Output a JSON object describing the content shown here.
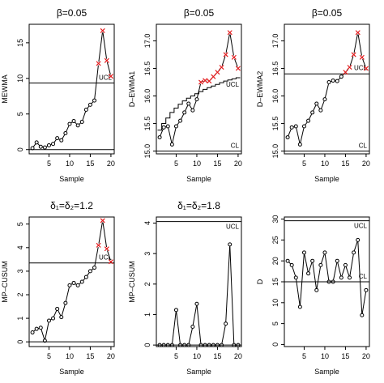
{
  "chart_data": [
    {
      "type": "line",
      "title": "β=0.05",
      "xlabel": "Sample",
      "ylabel": "MEWMA",
      "xlim": [
        0.2,
        20.8
      ],
      "ylim": [
        -0.6,
        17.6
      ],
      "xticks": [
        5,
        10,
        15,
        20
      ],
      "xtick_labels": [
        "5",
        "10",
        "15",
        "20"
      ],
      "yticks": [
        0,
        5,
        10,
        15
      ],
      "ytick_labels": [
        "0",
        "5",
        "10",
        "15"
      ],
      "series": [
        {
          "x": [
            1,
            2,
            3,
            4,
            5,
            6,
            7,
            8,
            9,
            10,
            11,
            12,
            13,
            14,
            15,
            16,
            17,
            18,
            19,
            20
          ],
          "values": [
            0.2,
            1.0,
            0.4,
            0.3,
            0.6,
            0.8,
            1.6,
            1.3,
            2.3,
            3.6,
            4.0,
            3.4,
            3.9,
            5.6,
            6.3,
            6.9,
            12.1,
            16.7,
            12.5,
            10.3
          ],
          "out_of_control": [
            17,
            18,
            19,
            20
          ]
        }
      ],
      "hlines": [
        {
          "y": 0,
          "label": ""
        },
        {
          "y": 9.35,
          "label": "UCL"
        }
      ],
      "grid": false
    },
    {
      "type": "line",
      "title": "β=0.05",
      "xlabel": "Sample",
      "ylabel": "D–EWMA1",
      "xlim": [
        0.2,
        20.8
      ],
      "ylim": [
        14.95,
        17.3
      ],
      "xticks": [
        5,
        10,
        15,
        20
      ],
      "xtick_labels": [
        "5",
        "10",
        "15",
        "20"
      ],
      "yticks": [
        15.0,
        15.5,
        16.0,
        16.5,
        17.0
      ],
      "ytick_labels": [
        "15.0",
        "15.5",
        "16.0",
        "16.5",
        "17.0"
      ],
      "series": [
        {
          "x": [
            1,
            2,
            3,
            4,
            5,
            6,
            7,
            8,
            9,
            10,
            11,
            12,
            13,
            14,
            15,
            16,
            17,
            18,
            19,
            20
          ],
          "values": [
            15.25,
            15.43,
            15.45,
            15.12,
            15.45,
            15.55,
            15.7,
            15.86,
            15.74,
            15.94,
            16.25,
            16.28,
            16.27,
            16.35,
            16.43,
            16.52,
            16.75,
            17.15,
            16.7,
            16.5
          ],
          "out_of_control": [
            11,
            12,
            13,
            14,
            15,
            16,
            17,
            18,
            19,
            20
          ]
        }
      ],
      "ucl_step": [
        15.38,
        15.5,
        15.6,
        15.7,
        15.78,
        15.85,
        15.91,
        15.96,
        16.0,
        16.04,
        16.08,
        16.12,
        16.15,
        16.18,
        16.21,
        16.24,
        16.27,
        16.29,
        16.31,
        16.33
      ],
      "hlines": [
        {
          "y": 15.0,
          "label": "CL"
        }
      ],
      "annotations": [
        {
          "text": "UCL"
        }
      ],
      "grid": false
    },
    {
      "type": "line",
      "title": "β=0.05",
      "xlabel": "Sample",
      "ylabel": "D–EWMA2",
      "xlim": [
        0.2,
        20.8
      ],
      "ylim": [
        14.95,
        17.3
      ],
      "xticks": [
        5,
        10,
        15,
        20
      ],
      "xtick_labels": [
        "5",
        "10",
        "15",
        "20"
      ],
      "yticks": [
        15.0,
        15.5,
        16.0,
        16.5,
        17.0
      ],
      "ytick_labels": [
        "15.0",
        "15.5",
        "16.0",
        "16.5",
        "17.0"
      ],
      "series": [
        {
          "x": [
            1,
            2,
            3,
            4,
            5,
            6,
            7,
            8,
            9,
            10,
            11,
            12,
            13,
            14,
            15,
            16,
            17,
            18,
            19,
            20
          ],
          "values": [
            15.25,
            15.43,
            15.45,
            15.12,
            15.45,
            15.55,
            15.7,
            15.86,
            15.74,
            15.94,
            16.25,
            16.28,
            16.27,
            16.35,
            16.43,
            16.52,
            16.75,
            17.15,
            16.7,
            16.5
          ],
          "out_of_control": [
            15,
            16,
            17,
            18,
            19,
            20
          ]
        }
      ],
      "hlines": [
        {
          "y": 15.0,
          "label": "CL"
        },
        {
          "y": 16.4,
          "label": ""
        }
      ],
      "annotations": [
        {
          "text": "UCL"
        }
      ],
      "grid": false
    },
    {
      "type": "line",
      "title": "δ₁=δ₂=1.2",
      "xlabel": "Sample",
      "ylabel": "MP–CUSUM",
      "xlim": [
        0.2,
        20.8
      ],
      "ylim": [
        -0.2,
        5.3
      ],
      "xticks": [
        5,
        10,
        15,
        20
      ],
      "xtick_labels": [
        "5",
        "10",
        "15",
        "20"
      ],
      "yticks": [
        0,
        1,
        2,
        3,
        4,
        5
      ],
      "ytick_labels": [
        "0",
        "1",
        "2",
        "3",
        "4",
        "5"
      ],
      "series": [
        {
          "x": [
            1,
            2,
            3,
            4,
            5,
            6,
            7,
            8,
            9,
            10,
            11,
            12,
            13,
            14,
            15,
            16,
            17,
            18,
            19,
            20
          ],
          "values": [
            0.4,
            0.55,
            0.6,
            0.05,
            0.9,
            1.0,
            1.4,
            1.05,
            1.65,
            2.4,
            2.5,
            2.4,
            2.55,
            2.75,
            3.0,
            3.15,
            4.1,
            5.15,
            3.95,
            3.4
          ],
          "out_of_control": [
            17,
            18,
            19,
            20
          ]
        }
      ],
      "hlines": [
        {
          "y": 0,
          "label": ""
        },
        {
          "y": 3.35,
          "label": "UCL"
        }
      ],
      "grid": false
    },
    {
      "type": "line",
      "title": "δ₁=δ₂=1.8",
      "xlabel": "Sample",
      "ylabel": "MP–CUSUM",
      "xlim": [
        0.2,
        20.8
      ],
      "ylim": [
        -0.05,
        4.2
      ],
      "xticks": [
        5,
        10,
        15,
        20
      ],
      "xtick_labels": [
        "5",
        "10",
        "15",
        "20"
      ],
      "yticks": [
        0,
        1,
        2,
        3,
        4
      ],
      "ytick_labels": [
        "0",
        "1",
        "2",
        "3",
        "4"
      ],
      "series": [
        {
          "x": [
            1,
            2,
            3,
            4,
            5,
            6,
            7,
            8,
            9,
            10,
            11,
            12,
            13,
            14,
            15,
            16,
            17,
            18,
            19,
            20
          ],
          "values": [
            0,
            0,
            0,
            0,
            1.15,
            0,
            0,
            0,
            0.6,
            1.35,
            0,
            0,
            0,
            0,
            0,
            0,
            0.7,
            3.3,
            0,
            0
          ],
          "out_of_control": []
        }
      ],
      "hlines": [
        {
          "y": 0,
          "label": ""
        },
        {
          "y": 4.05,
          "label": "UCL"
        }
      ],
      "grid": false
    },
    {
      "type": "line",
      "title": "",
      "xlabel": "Sample",
      "ylabel": "D",
      "xlim": [
        0.2,
        20.8
      ],
      "ylim": [
        -0.5,
        30.5
      ],
      "xticks": [
        5,
        10,
        15,
        20
      ],
      "xtick_labels": [
        "5",
        "10",
        "15",
        "20"
      ],
      "yticks": [
        0,
        5,
        10,
        15,
        20,
        25,
        30
      ],
      "ytick_labels": [
        "0",
        "5",
        "10",
        "15",
        "20",
        "25",
        "30"
      ],
      "series": [
        {
          "x": [
            1,
            2,
            3,
            4,
            5,
            6,
            7,
            8,
            9,
            10,
            11,
            12,
            13,
            14,
            15,
            16,
            17,
            18,
            19,
            20
          ],
          "values": [
            20,
            19,
            16,
            9,
            22,
            17,
            20,
            13,
            19,
            22,
            15,
            15,
            20,
            16,
            19,
            16,
            22,
            25,
            7,
            13
          ],
          "out_of_control": []
        }
      ],
      "hlines": [
        {
          "y": 15,
          "label": "CL"
        },
        {
          "y": 29.6,
          "label": "UCL"
        }
      ],
      "grid": false
    }
  ]
}
